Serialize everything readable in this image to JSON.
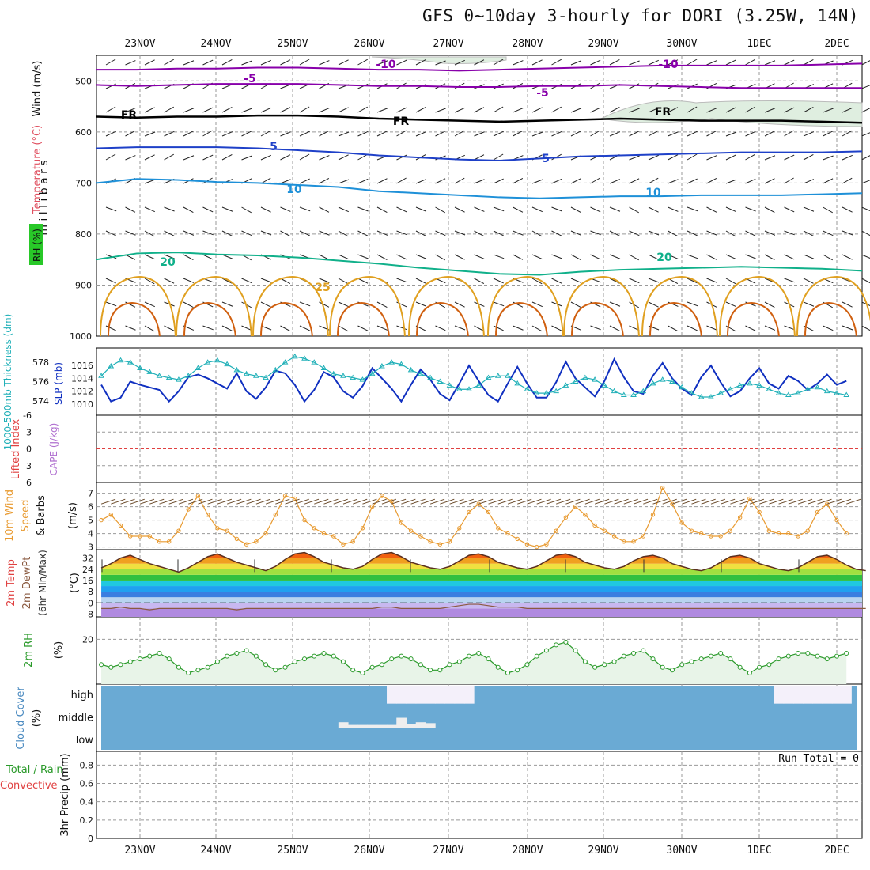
{
  "title": "GFS 0~10day 3-hourly for DORI (3.25W, 14N)",
  "dates": [
    "23NOV",
    "24NOV",
    "25NOV",
    "26NOV",
    "27NOV",
    "28NOV",
    "29NOV",
    "30NOV",
    "1DEC",
    "2DEC"
  ],
  "run_total": "Run Total = 0",
  "colors": {
    "temp_purple": "#8800aa",
    "temp_black": "#000000",
    "temp_blue": "#1e40c8",
    "temp_lightblue": "#1e90d8",
    "temp_teal": "#10b08a",
    "temp_orange": "#e0a020",
    "slp": "#1030c0",
    "thickness": "#20b0b8",
    "wind": "#e89a30",
    "rh": "#2a9a2a",
    "cloud": "#6aaad4",
    "li_zero": "#e04040"
  },
  "chart_data": [
    {
      "type": "line",
      "panel": "upper-air",
      "ylabel": "m i l l i b a r s",
      "side_labels": [
        "RH (%)",
        "Temperature (°C)",
        "Wind (m/s)"
      ],
      "y_ticks": [
        500,
        600,
        700,
        800,
        900,
        1000
      ],
      "ylim": [
        1000,
        450
      ],
      "isotherm_labels": [
        "-10",
        "-10",
        "-5",
        "-5",
        "FR",
        "FR",
        "FR",
        "5",
        "5",
        "10",
        "10",
        "20",
        "20",
        "25"
      ],
      "isotherms": [
        {
          "level": -10,
          "color_key": "temp_purple",
          "p": [
            478,
            478,
            476,
            476,
            474,
            474,
            476,
            478,
            478,
            480,
            478,
            476,
            474,
            472,
            470,
            470,
            470,
            470,
            468,
            466
          ]
        },
        {
          "level": -5,
          "color_key": "temp_purple",
          "p": [
            508,
            510,
            508,
            506,
            506,
            506,
            508,
            510,
            510,
            512,
            512,
            510,
            510,
            508,
            510,
            512,
            514,
            514,
            514,
            514
          ]
        },
        {
          "level": 0,
          "color_key": "temp_black",
          "p": [
            570,
            572,
            570,
            570,
            568,
            568,
            570,
            574,
            576,
            578,
            580,
            578,
            576,
            574,
            576,
            578,
            578,
            578,
            580,
            582
          ]
        },
        {
          "level": 5,
          "color_key": "temp_blue",
          "p": [
            632,
            630,
            630,
            630,
            632,
            636,
            640,
            646,
            650,
            654,
            656,
            652,
            648,
            646,
            644,
            642,
            640,
            640,
            640,
            638
          ]
        },
        {
          "level": 10,
          "color_key": "temp_lightblue",
          "p": [
            700,
            692,
            694,
            698,
            700,
            704,
            708,
            716,
            720,
            724,
            728,
            730,
            728,
            726,
            726,
            724,
            724,
            724,
            722,
            720
          ]
        },
        {
          "level": 20,
          "color_key": "temp_teal",
          "p": [
            850,
            838,
            836,
            840,
            842,
            846,
            852,
            858,
            866,
            872,
            878,
            880,
            874,
            870,
            868,
            866,
            864,
            866,
            868,
            872
          ]
        }
      ]
    },
    {
      "type": "line",
      "panel": "slp-thickness",
      "left_label": "1000-500mb Thickness (dm)",
      "right_label": "SLP (mb)",
      "y_ticks_left": [
        574,
        576,
        578
      ],
      "y_ticks_right": [
        1010,
        1012,
        1014,
        1016
      ],
      "ylim_slp": [
        1009,
        1018
      ],
      "ylim_thick": [
        573,
        579
      ],
      "series": [
        {
          "color_key": "slp",
          "values": [
            1013.0,
            1010.4,
            1011.0,
            1013.5,
            1013.0,
            1012.6,
            1012.2,
            1010.4,
            1012.0,
            1014.2,
            1014.6,
            1014.0,
            1013.2,
            1012.4,
            1014.8,
            1012.0,
            1010.8,
            1012.6,
            1015.2,
            1014.8,
            1013.0,
            1010.4,
            1012.2,
            1015.0,
            1014.2,
            1012.0,
            1011.0,
            1012.8,
            1015.6,
            1014.0,
            1012.4,
            1010.4,
            1013.0,
            1015.4,
            1013.8,
            1011.6,
            1010.6,
            1013.2,
            1016.0,
            1013.6,
            1011.4,
            1010.4,
            1013.2,
            1015.8,
            1013.2,
            1011.0,
            1011.0,
            1013.4,
            1016.6,
            1014.0,
            1012.6,
            1011.2,
            1013.6,
            1017.0,
            1014.2,
            1012.0,
            1011.6,
            1014.4,
            1016.4,
            1014.0,
            1012.4,
            1011.4,
            1014.2,
            1016.0,
            1013.4,
            1011.2,
            1012.0,
            1014.0,
            1015.6,
            1013.2,
            1012.4,
            1014.4,
            1013.6,
            1012.2,
            1013.2,
            1014.6,
            1013.0,
            1013.6
          ]
        },
        {
          "color_key": "thickness",
          "values": [
            576.6,
            577.6,
            578.2,
            578.0,
            577.4,
            577.0,
            576.6,
            576.4,
            576.2,
            576.6,
            577.4,
            578.0,
            578.2,
            577.8,
            577.2,
            576.8,
            576.6,
            576.4,
            577.2,
            578.0,
            578.6,
            578.4,
            578.0,
            577.4,
            576.8,
            576.6,
            576.4,
            576.2,
            576.8,
            577.6,
            578.0,
            577.8,
            577.2,
            576.8,
            576.4,
            576.0,
            575.6,
            575.2,
            575.2,
            575.6,
            576.4,
            576.6,
            576.6,
            575.8,
            575.2,
            574.8,
            574.8,
            575.0,
            575.6,
            576.0,
            576.4,
            576.2,
            575.6,
            575.0,
            574.6,
            574.6,
            575.0,
            575.8,
            576.2,
            576.0,
            575.4,
            574.8,
            574.4,
            574.4,
            574.8,
            575.2,
            575.6,
            575.8,
            575.6,
            575.2,
            574.8,
            574.6,
            574.8,
            575.2,
            575.4,
            575.0,
            574.8,
            574.6
          ]
        }
      ]
    },
    {
      "type": "line",
      "panel": "cape-li",
      "left_label": "Lifted Index",
      "right_label": "CAPE (J/kg)",
      "y_ticks": [
        "-6",
        "-3",
        "0",
        "3",
        "6"
      ],
      "ylim": [
        6,
        -6
      ],
      "values_li": []
    },
    {
      "type": "line",
      "panel": "wind10m",
      "left_label": "10m Wind Speed & Barbs",
      "unit": "(m/s)",
      "y_ticks": [
        3,
        4,
        5,
        6,
        7
      ],
      "ylim": [
        2.8,
        7.8
      ],
      "values": [
        5.0,
        5.4,
        4.6,
        3.8,
        3.8,
        3.8,
        3.4,
        3.4,
        4.2,
        5.8,
        6.8,
        5.4,
        4.4,
        4.2,
        3.6,
        3.2,
        3.4,
        4.0,
        5.4,
        6.8,
        6.6,
        5.0,
        4.4,
        4.0,
        3.8,
        3.2,
        3.4,
        4.4,
        6.0,
        6.8,
        6.4,
        4.8,
        4.2,
        3.8,
        3.4,
        3.2,
        3.4,
        4.4,
        5.6,
        6.2,
        5.6,
        4.4,
        4.0,
        3.6,
        3.2,
        3.0,
        3.2,
        4.2,
        5.2,
        6.0,
        5.4,
        4.6,
        4.2,
        3.8,
        3.4,
        3.4,
        3.8,
        5.4,
        7.4,
        6.2,
        4.8,
        4.2,
        4.0,
        3.8,
        3.8,
        4.2,
        5.2,
        6.6,
        5.6,
        4.2,
        4.0,
        4.0,
        3.8,
        4.2,
        5.6,
        6.2,
        5.0,
        4.0
      ]
    },
    {
      "type": "area",
      "panel": "temp2m",
      "left_label": "2m Temp 2m DewPt (6hr Min/Max)",
      "unit": "(°C)",
      "y_ticks": [
        "-8",
        "0",
        "8",
        "16",
        "24",
        "32"
      ],
      "ylim": [
        -10,
        38
      ],
      "temp": [
        25,
        28,
        32,
        34,
        31,
        28,
        26,
        24,
        22,
        25,
        29,
        33,
        35,
        32,
        29,
        27,
        25,
        23,
        26,
        31,
        35,
        36,
        33,
        29,
        27,
        25,
        24,
        26,
        31,
        35,
        36,
        33,
        29,
        27,
        25,
        24,
        26,
        30,
        34,
        35,
        33,
        29,
        27,
        25,
        24,
        26,
        30,
        34,
        35,
        33,
        29,
        27,
        25,
        24,
        26,
        30,
        33,
        34,
        32,
        28,
        26,
        24,
        23,
        25,
        29,
        33,
        34,
        32,
        28,
        26,
        24,
        23,
        25,
        29,
        33,
        34,
        31,
        27,
        24,
        23
      ],
      "dew": [
        -4,
        -4,
        -3,
        -4,
        -4,
        -5,
        -4,
        -4,
        -4,
        -4,
        -4,
        -4,
        -4,
        -4,
        -5,
        -4,
        -4,
        -4,
        -4,
        -4,
        -4,
        -4,
        -4,
        -4,
        -4,
        -4,
        -4,
        -4,
        -4,
        -3,
        -3,
        -4,
        -4,
        -4,
        -4,
        -4,
        -3,
        -2,
        -1,
        -1,
        -2,
        -3,
        -3,
        -3,
        -4,
        -4,
        -4,
        -4,
        -4,
        -4,
        -4,
        -4,
        -4,
        -4,
        -4,
        -4,
        -4,
        -4,
        -4,
        -4,
        -4,
        -4,
        -4,
        -4,
        -4,
        -4,
        -4,
        -4,
        -4,
        -4,
        -4,
        -4,
        -4,
        -4,
        -4,
        -4,
        -4,
        -4,
        -4,
        -4
      ]
    },
    {
      "type": "area",
      "panel": "rh2m",
      "left_label": "2m RH",
      "unit": "(%)",
      "y_ticks": [
        20
      ],
      "ylim": [
        4,
        28
      ],
      "values": [
        11,
        10,
        11,
        12,
        13,
        14,
        15,
        13,
        10,
        8,
        9,
        10,
        12,
        14,
        15,
        16,
        14,
        11,
        9,
        10,
        12,
        13,
        14,
        15,
        14,
        12,
        9,
        8,
        10,
        11,
        13,
        14,
        13,
        11,
        9,
        9,
        11,
        12,
        14,
        15,
        13,
        10,
        8,
        9,
        11,
        14,
        16,
        18,
        19,
        16,
        12,
        10,
        11,
        12,
        14,
        15,
        16,
        13,
        10,
        9,
        11,
        12,
        13,
        14,
        15,
        13,
        10,
        8,
        10,
        11,
        13,
        14,
        15,
        15,
        14,
        13,
        14,
        15
      ]
    },
    {
      "type": "bar",
      "panel": "cloud-cover",
      "left_label": "Cloud Cover",
      "unit": "(%)",
      "y_ticks": [
        "high",
        "middle",
        "low"
      ],
      "high": [
        0,
        0,
        0,
        0,
        0,
        0,
        0,
        0,
        0,
        0,
        0,
        30,
        0,
        0,
        0,
        0,
        0,
        0,
        0,
        0,
        0,
        0,
        0,
        0,
        0,
        0,
        0,
        0,
        0,
        0,
        100,
        100,
        100,
        100,
        100,
        100,
        100,
        100,
        100,
        90,
        0,
        0,
        0,
        0,
        0,
        0,
        0,
        0,
        0,
        0,
        0,
        0,
        0,
        0,
        0,
        0,
        0,
        0,
        0,
        0,
        0,
        0,
        0,
        0,
        0,
        0,
        0,
        20,
        40,
        70,
        100,
        100,
        100,
        100,
        100,
        100,
        100,
        100
      ],
      "middle": [
        0,
        0,
        0,
        0,
        0,
        0,
        0,
        0,
        0,
        0,
        0,
        0,
        0,
        0,
        0,
        0,
        0,
        0,
        0,
        0,
        0,
        0,
        0,
        0,
        0,
        30,
        15,
        15,
        15,
        15,
        15,
        55,
        20,
        30,
        25,
        0,
        0,
        0,
        0,
        0,
        0,
        0,
        0,
        0,
        0,
        0,
        0,
        0,
        0,
        0,
        0,
        0,
        0,
        0,
        0,
        0,
        0,
        0,
        0,
        0,
        0,
        0,
        0,
        0,
        0,
        0,
        0,
        0,
        0,
        0,
        0,
        0,
        0,
        0,
        0,
        0,
        0,
        0
      ],
      "low": [
        0,
        0,
        0,
        0,
        0,
        0,
        0,
        0,
        0,
        0,
        0,
        0,
        0,
        0,
        0,
        0,
        0,
        0,
        0,
        0,
        0,
        0,
        0,
        0,
        0,
        0,
        0,
        0,
        0,
        0,
        0,
        0,
        0,
        0,
        0,
        0,
        0,
        0,
        0,
        0,
        0,
        0,
        0,
        0,
        0,
        0,
        0,
        0,
        0,
        0,
        0,
        0,
        0,
        0,
        0,
        0,
        0,
        0,
        0,
        0,
        0,
        0,
        0,
        0,
        0,
        0,
        0,
        0,
        0,
        0,
        0,
        0,
        0,
        0,
        0,
        0,
        0,
        0
      ]
    },
    {
      "type": "bar",
      "panel": "precip",
      "left_label": "Total / Rain Convective",
      "left_label_total": "Total / Rain",
      "left_label_conv": "Convective",
      "ylabel": "3hr Precip (mm)",
      "y_ticks": [
        "0",
        "0.2",
        "0.4",
        "0.6",
        "0.8"
      ],
      "ylim": [
        0,
        0.95
      ],
      "values": []
    }
  ]
}
